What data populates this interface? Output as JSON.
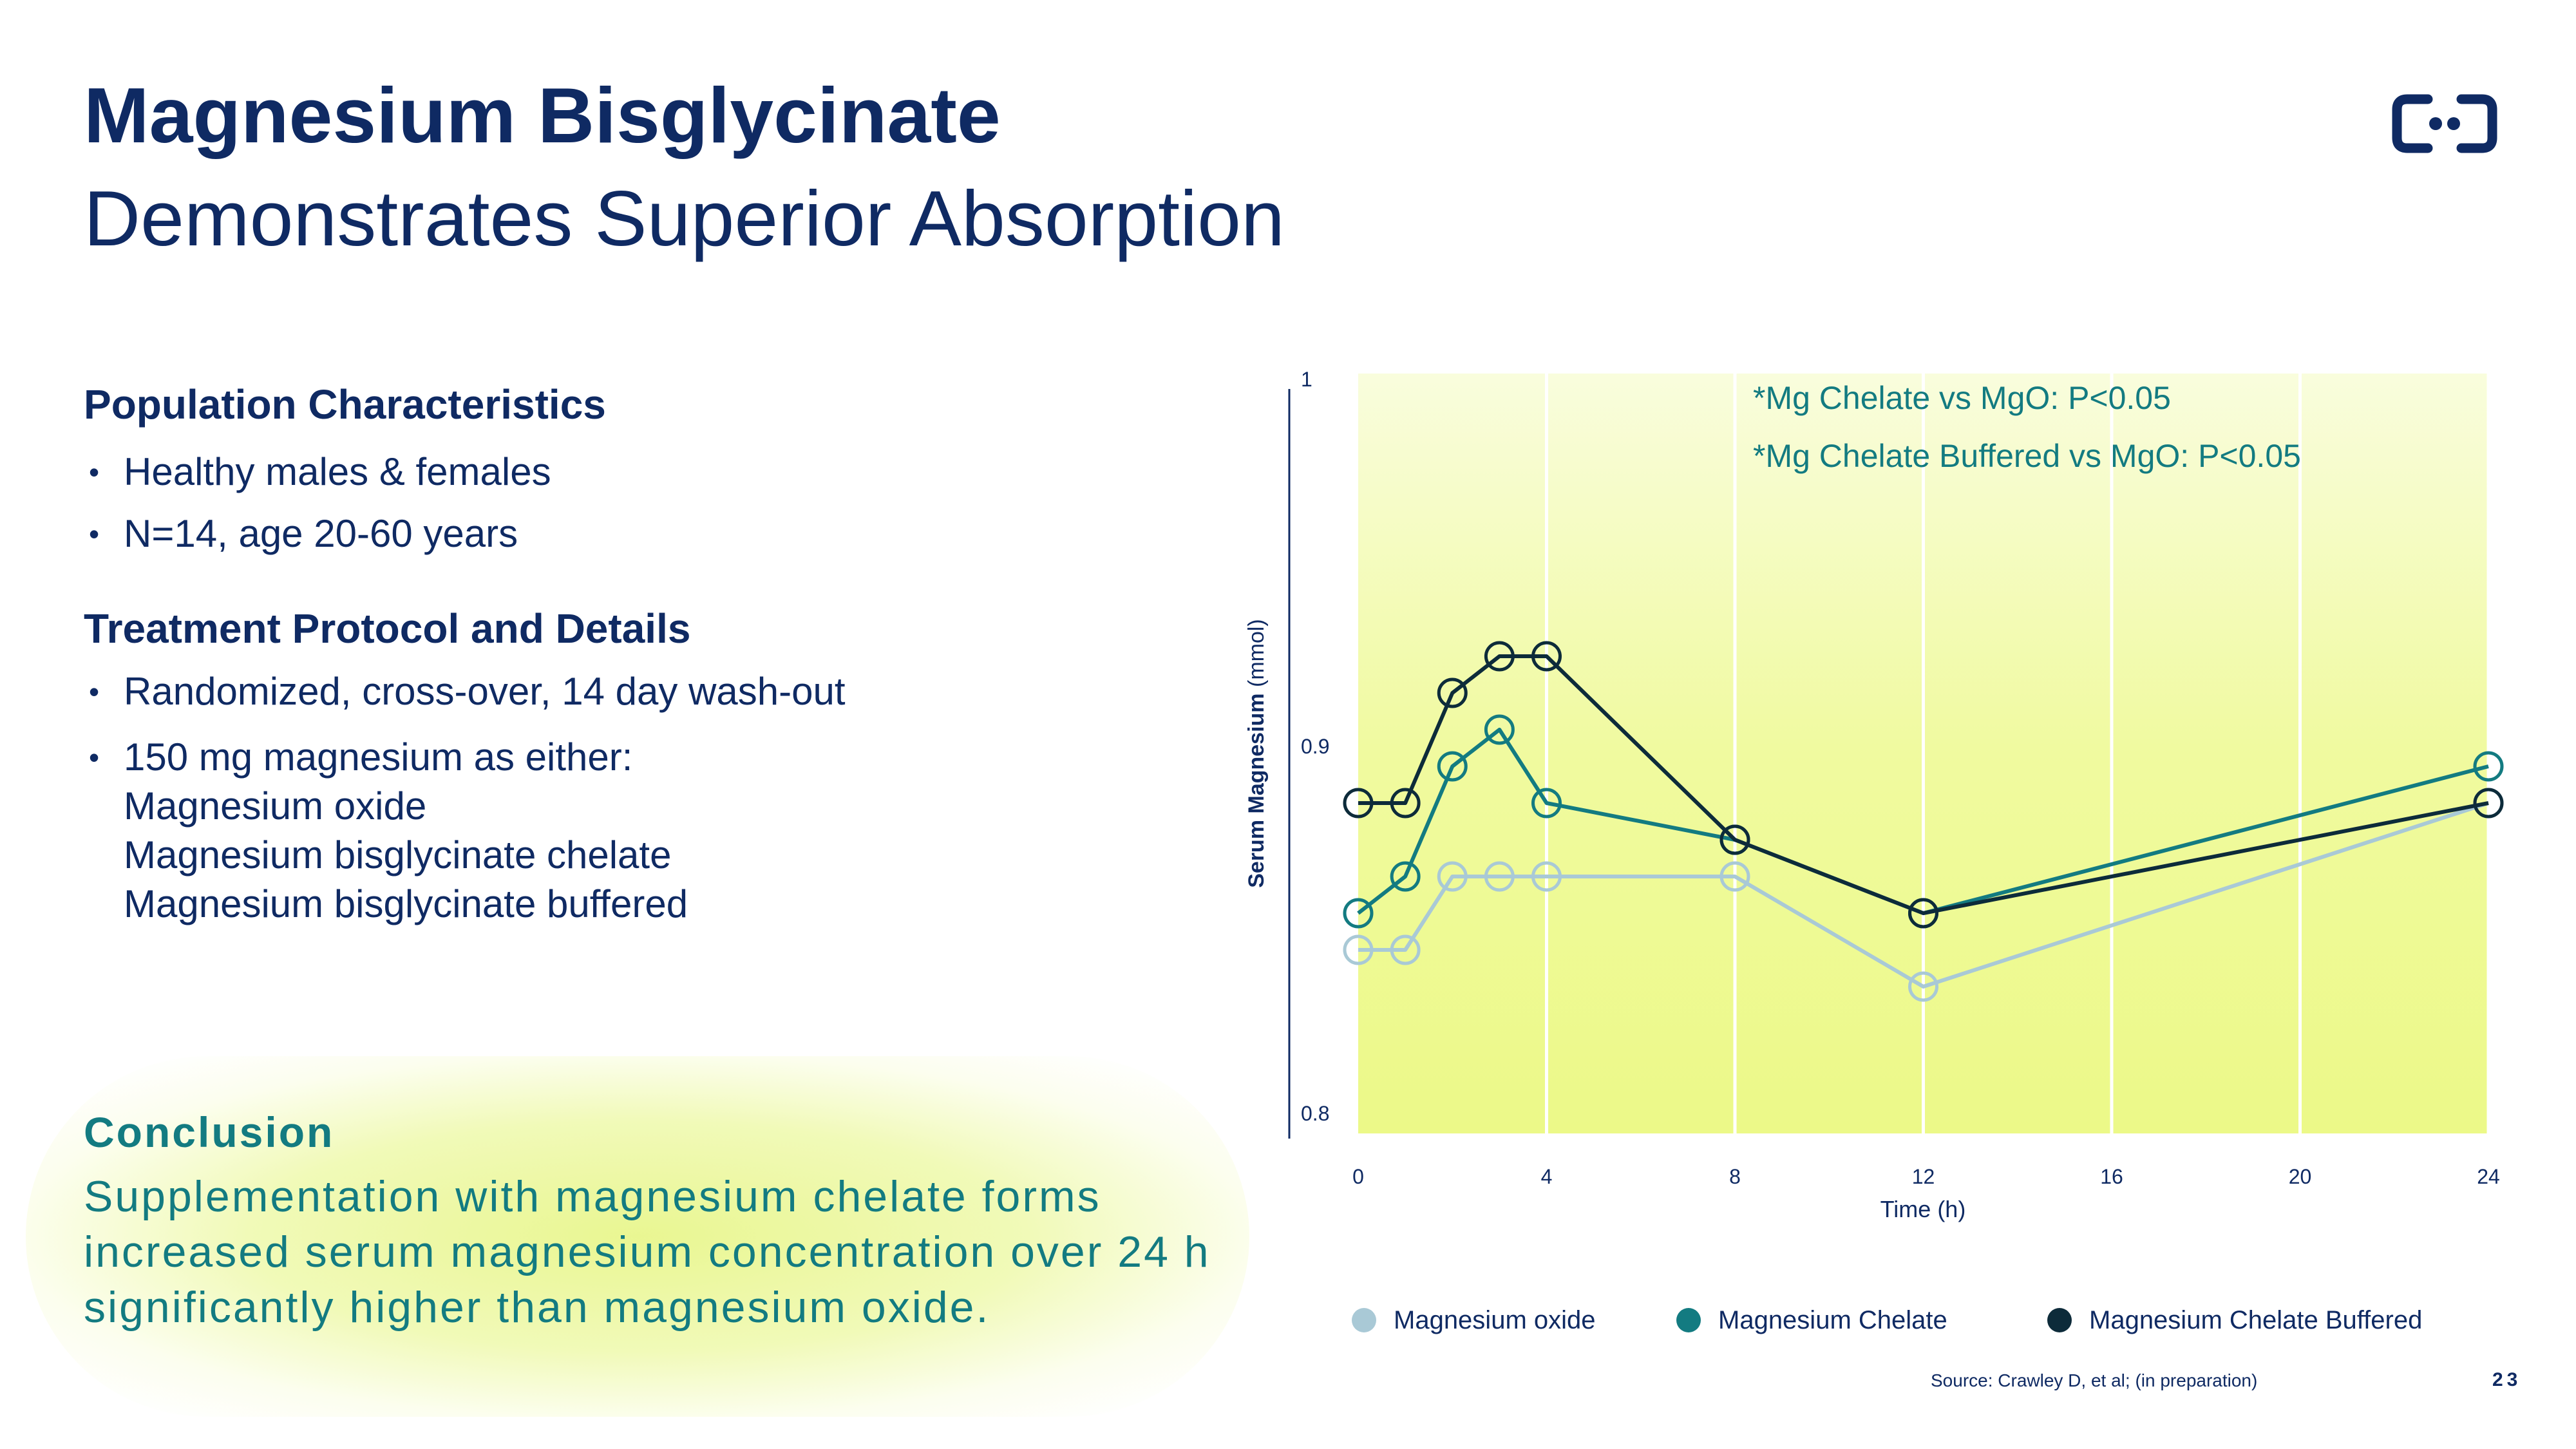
{
  "title": "Magnesium Bisglycinate",
  "subtitle": "Demonstrates Superior Absorption",
  "logo_icon": "brand-logo-icon",
  "population": {
    "heading": "Population Characteristics",
    "items": [
      "Healthy males & females",
      "N=14, age 20-60 years"
    ]
  },
  "treatment": {
    "heading": "Treatment Protocol and Details",
    "item1": "Randomized, cross-over, 14 day wash-out",
    "item2_lines": [
      "150 mg magnesium as either:",
      "Magnesium oxide",
      "Magnesium bisglycinate chelate",
      "Magnesium bisglycinate buffered"
    ]
  },
  "conclusion": {
    "heading": "Conclusion",
    "text": "Supplementation with magnesium chelate forms increased serum magnesium concentration over 24 h significantly higher than magnesium oxide."
  },
  "bullet_char": "•",
  "source": "Source: Crawley D, et al; (in preparation)",
  "page_number": "23",
  "colors": {
    "navy": "#0f2a63",
    "teal": "#137b81",
    "light_blue": "#a9c9d6",
    "dark": "#0d2b3a"
  },
  "chart_data": {
    "type": "line",
    "xlabel": "Time (h)",
    "ylabel_bold": "Serum Magnesium",
    "ylabel_unit": "(mmol)",
    "xlim": [
      0,
      24
    ],
    "ylim": [
      0.8,
      1.0
    ],
    "x_ticks": [
      0,
      4,
      8,
      12,
      16,
      20,
      24
    ],
    "x_tick_labels": [
      "0",
      "4",
      "8",
      "12",
      "16",
      "20",
      "24"
    ],
    "y_ticks": [
      0.8,
      0.9,
      1.0
    ],
    "y_tick_labels": [
      "0.8",
      "0.9",
      "1"
    ],
    "annotations": [
      "*Mg Chelate vs MgO: P<0.05",
      "*Mg Chelate Buffered vs MgO: P<0.05"
    ],
    "series": [
      {
        "name": "Magnesium oxide",
        "color": "#a9c9d6",
        "points": [
          [
            0,
            0.85
          ],
          [
            1,
            0.85
          ],
          [
            2,
            0.87
          ],
          [
            3,
            0.87
          ],
          [
            4,
            0.87
          ],
          [
            8,
            0.87
          ],
          [
            12,
            0.84
          ],
          [
            24,
            0.89
          ]
        ]
      },
      {
        "name": "Magnesium Chelate",
        "color": "#137b81",
        "points": [
          [
            0,
            0.86
          ],
          [
            1,
            0.87
          ],
          [
            2,
            0.9
          ],
          [
            3,
            0.91
          ],
          [
            4,
            0.89
          ],
          [
            8,
            0.88
          ],
          [
            12,
            0.86
          ],
          [
            24,
            0.9
          ]
        ]
      },
      {
        "name": "Magnesium Chelate Buffered",
        "color": "#0d2b3a",
        "points": [
          [
            0,
            0.89
          ],
          [
            1,
            0.89
          ],
          [
            2,
            0.92
          ],
          [
            3,
            0.93
          ],
          [
            4,
            0.93
          ],
          [
            8,
            0.88
          ],
          [
            12,
            0.86
          ],
          [
            24,
            0.89
          ]
        ]
      }
    ]
  }
}
